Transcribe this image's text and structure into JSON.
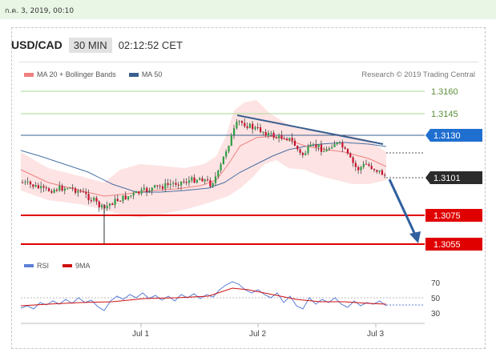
{
  "top_bar": {
    "datetime": "ก.ค. 3, 2019, 00:10"
  },
  "header": {
    "symbol": "USD/CAD",
    "timeframe": "30 MIN",
    "time": "02:12:52 CET"
  },
  "legend": {
    "ma20": {
      "label": "MA 20 + Bollinger Bands",
      "color": "#f08080"
    },
    "ma50": {
      "label": "MA 50",
      "color": "#3a5f8f"
    }
  },
  "credit": "Research © 2019 Trading Central",
  "levels": [
    {
      "value": "1.3160",
      "kind": "resistance-light"
    },
    {
      "value": "1.3145",
      "kind": "resistance-light"
    },
    {
      "value": "1.3130",
      "kind": "resistance-box"
    },
    {
      "value": "1.3101",
      "kind": "current"
    },
    {
      "value": "1.3075",
      "kind": "support"
    },
    {
      "value": "1.3055",
      "kind": "support"
    }
  ],
  "rsi_legend": {
    "rsi": {
      "label": "RSI",
      "color": "#5b7fd6"
    },
    "ma9": {
      "label": "9MA",
      "color": "#d01010"
    }
  },
  "rsi_levels": [
    "70",
    "50",
    "30"
  ],
  "x_axis": [
    "Jul 1",
    "Jul 2",
    "Jul 3"
  ],
  "colors": {
    "up": "#2e9e44",
    "down": "#c8102e",
    "support": "#e00000",
    "level_light": "#9fd48a",
    "band": "#fde0e0",
    "arrow": "#2f5f9e"
  }
}
